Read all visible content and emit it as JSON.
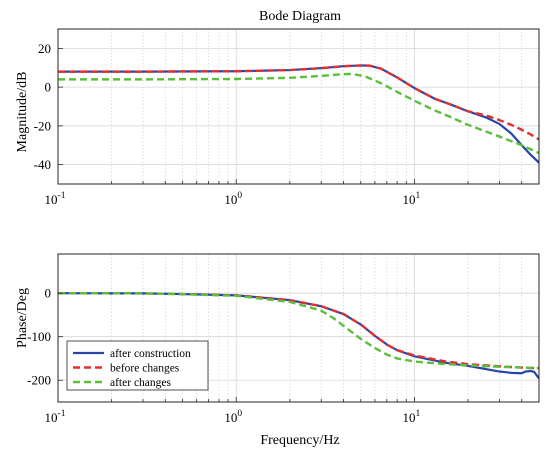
{
  "chart_data": [
    {
      "type": "line",
      "title": "Bode Diagram",
      "xlabel": "",
      "ylabel": "Magnitude/dB",
      "xscale": "log",
      "xlim": [
        0.1,
        50
      ],
      "ylim": [
        -50,
        30
      ],
      "x_tick_labels": [
        {
          "base": "10",
          "exp": "-1"
        },
        {
          "base": "10",
          "exp": "0"
        },
        {
          "base": "10",
          "exp": "1"
        }
      ],
      "y_ticks": [
        -40,
        -20,
        0,
        20
      ],
      "grid": true,
      "series": [
        {
          "color": "#2846a8",
          "style": "solid",
          "x": [
            0.1,
            0.3,
            1,
            2,
            3,
            4,
            5,
            5.6,
            6.5,
            8,
            10,
            13,
            16,
            20,
            25,
            30,
            35,
            40,
            45,
            50
          ],
          "y": [
            8,
            8,
            8.2,
            8.8,
            9.8,
            10.8,
            11.2,
            11.1,
            9.5,
            5,
            -0.5,
            -6,
            -9,
            -12.5,
            -15.5,
            -19,
            -24,
            -30,
            -35,
            -39
          ]
        },
        {
          "color": "#e03030",
          "style": "dashed",
          "x": [
            0.1,
            0.3,
            1,
            2,
            3,
            4,
            5,
            5.6,
            6.5,
            8,
            10,
            13,
            16,
            20,
            25,
            30,
            35,
            40,
            45,
            50
          ],
          "y": [
            8,
            8,
            8.2,
            8.8,
            9.8,
            10.8,
            11.2,
            11.1,
            9.5,
            5,
            -0.5,
            -6,
            -9,
            -12.5,
            -14.5,
            -17,
            -19.5,
            -22,
            -24.5,
            -27
          ]
        },
        {
          "color": "#5cbf3a",
          "style": "dashed",
          "x": [
            0.1,
            0.3,
            1,
            2,
            3,
            4,
            4.5,
            5.3,
            6.5,
            8,
            10,
            13,
            16,
            20,
            30,
            40,
            50
          ],
          "y": [
            4,
            4,
            4.2,
            4.8,
            5.8,
            6.7,
            6.8,
            5.5,
            2,
            -2.5,
            -7,
            -12,
            -15.5,
            -19.5,
            -25.5,
            -30,
            -34
          ]
        }
      ]
    },
    {
      "type": "line",
      "title": "",
      "xlabel": "Frequency/Hz",
      "ylabel": "Phase/Deg",
      "xscale": "log",
      "xlim": [
        0.1,
        50
      ],
      "ylim": [
        -250,
        90
      ],
      "x_tick_labels": [
        {
          "base": "10",
          "exp": "-1"
        },
        {
          "base": "10",
          "exp": "0"
        },
        {
          "base": "10",
          "exp": "1"
        }
      ],
      "y_ticks": [
        -200,
        -100,
        0
      ],
      "grid": true,
      "legend": "bottom-left",
      "series": [
        {
          "name": "after construction",
          "color": "#2846a8",
          "style": "solid",
          "x": [
            0.1,
            0.3,
            0.5,
            1,
            2,
            3,
            4,
            5,
            6,
            7,
            8,
            10,
            15,
            20,
            30,
            35,
            40,
            42,
            45,
            47,
            50
          ],
          "y": [
            0,
            -0.5,
            -2,
            -5,
            -16,
            -30,
            -48,
            -72,
            -98,
            -118,
            -131,
            -145,
            -160,
            -167,
            -180,
            -183,
            -184,
            -180,
            -179,
            -181,
            -196
          ]
        },
        {
          "name": "before changes",
          "color": "#e03030",
          "style": "dashed",
          "x": [
            0.1,
            0.3,
            0.5,
            1,
            2,
            3,
            4,
            5,
            6,
            7,
            8,
            10,
            15,
            20,
            30,
            40,
            50
          ],
          "y": [
            0,
            -0.5,
            -2,
            -5,
            -16,
            -30,
            -48,
            -72,
            -98,
            -118,
            -131,
            -143,
            -157,
            -163,
            -168,
            -171,
            -173
          ]
        },
        {
          "name": "after changes",
          "color": "#5cbf3a",
          "style": "dashed",
          "x": [
            0.1,
            0.3,
            0.5,
            1,
            2,
            3,
            3.5,
            4,
            5,
            6,
            7,
            8,
            10,
            15,
            20,
            30,
            40,
            50
          ],
          "y": [
            0,
            -0.5,
            -2.5,
            -6,
            -20,
            -40,
            -57,
            -75,
            -105,
            -126,
            -141,
            -150,
            -157,
            -163,
            -166,
            -169,
            -171,
            -172
          ]
        }
      ]
    }
  ]
}
